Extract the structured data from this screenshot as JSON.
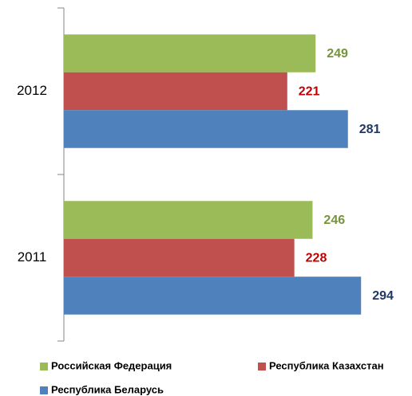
{
  "chart_data": {
    "type": "bar",
    "orientation": "horizontal",
    "categories": [
      "2012",
      "2011"
    ],
    "series": [
      {
        "name": "Российская Федерация",
        "color": "#9bbb59",
        "label_color": "#77933c",
        "values": [
          249,
          246
        ]
      },
      {
        "name": "Республика Казахстан",
        "color": "#c0504d",
        "label_color": "#c00000",
        "values": [
          221,
          228
        ]
      },
      {
        "name": "Республика Беларусь",
        "color": "#4f81bd",
        "label_color": "#1f3864",
        "values": [
          281,
          294
        ]
      }
    ],
    "legend": "bottom"
  }
}
